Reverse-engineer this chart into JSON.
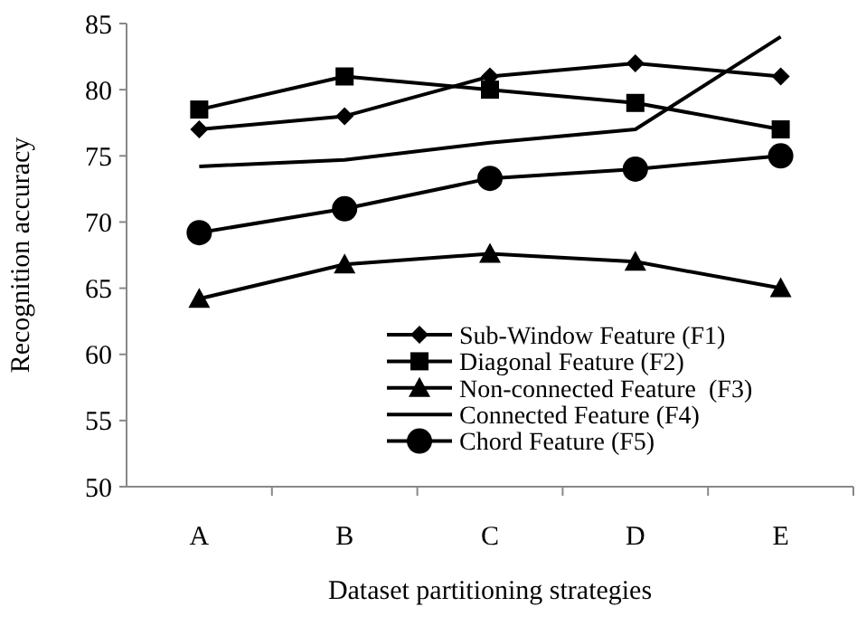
{
  "chart_data": {
    "type": "line",
    "xlabel": "Dataset partitioning strategies",
    "ylabel": "Recognition accuracy",
    "categories": [
      "A",
      "B",
      "C",
      "D",
      "E"
    ],
    "ylim": [
      50,
      85
    ],
    "yticks": [
      50,
      55,
      60,
      65,
      70,
      75,
      80,
      85
    ],
    "grid": false,
    "legend": "bottom right",
    "series": [
      {
        "name": "Sub-Window Feature (F1)",
        "color": "#000000",
        "marker": "diamond",
        "values": [
          77,
          78,
          81,
          82,
          81
        ]
      },
      {
        "name": "Diagonal Feature (F2)",
        "color": "#000000",
        "marker": "square",
        "values": [
          78.5,
          81,
          80,
          79,
          77
        ]
      },
      {
        "name": "Non-connected Feature  (F3)",
        "color": "#000000",
        "marker": "triangle",
        "values": [
          64.2,
          66.8,
          67.6,
          67,
          65
        ]
      },
      {
        "name": "Connected Feature (F4)",
        "color": "#000000",
        "marker": "none",
        "values": [
          74.2,
          74.7,
          76,
          77,
          84
        ]
      },
      {
        "name": "Chord Feature (F5)",
        "color": "#000000",
        "marker": "circle",
        "values": [
          69.2,
          71,
          73.3,
          74,
          75
        ]
      }
    ]
  }
}
